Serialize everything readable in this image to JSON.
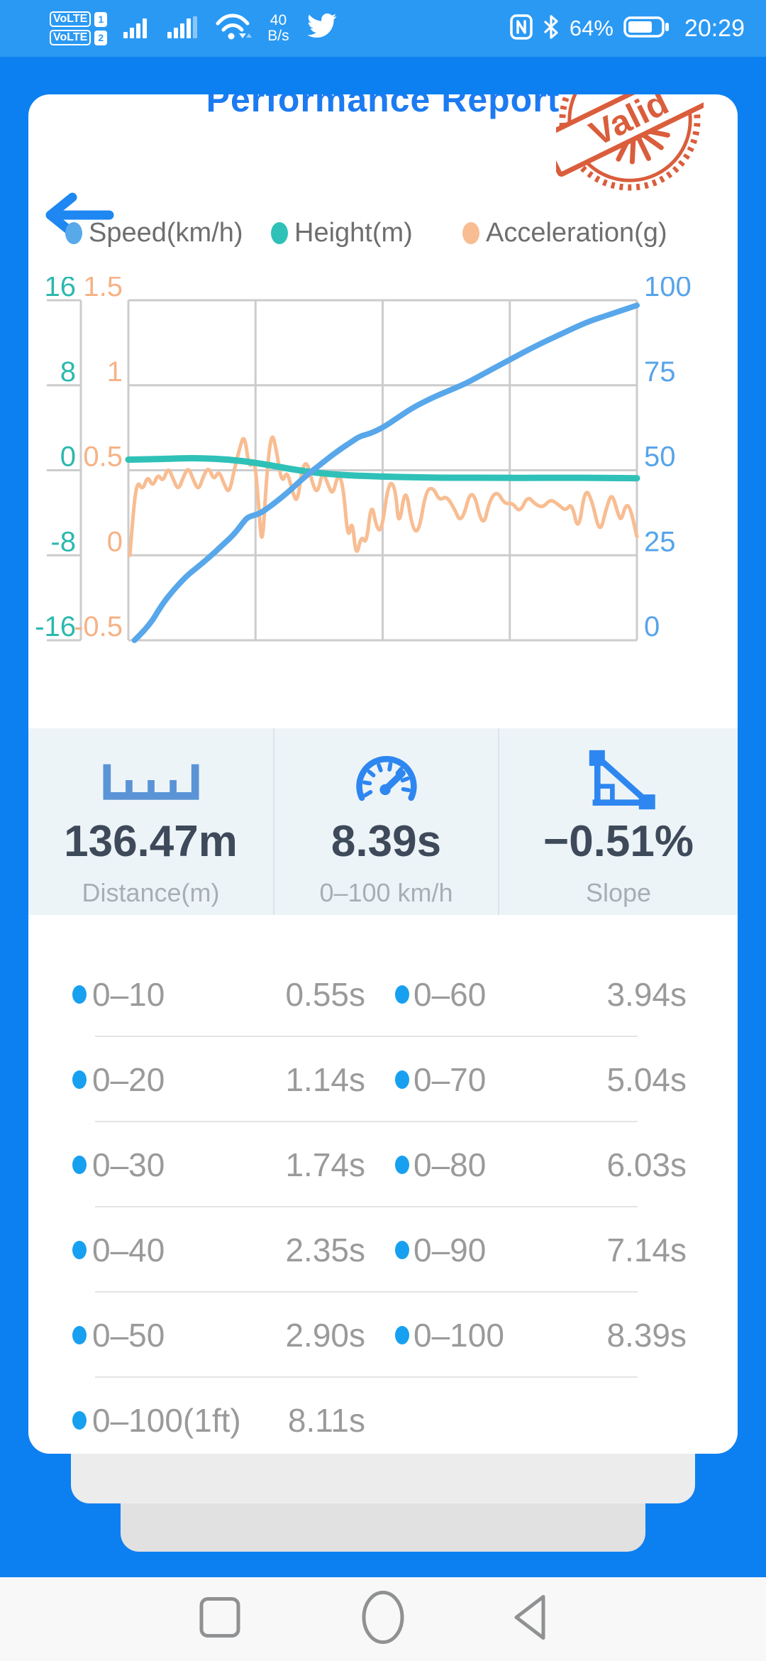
{
  "status_bar": {
    "volte": [
      {
        "label": "VoLTE",
        "sim": "1"
      },
      {
        "label": "VoLTE",
        "sim": "2"
      }
    ],
    "net_speed_value": "40",
    "net_speed_unit": "B/s",
    "battery_percent": "64%",
    "battery_level": 0.64,
    "time": "20:29"
  },
  "report": {
    "title": "Performance Report",
    "stamp": "Valid",
    "legend": [
      {
        "label": "Speed(km/h)",
        "color": "#58a9ea"
      },
      {
        "label": "Height(m)",
        "color": "#2fc1b8"
      },
      {
        "label": "Acceleration(g)",
        "color": "#f8bd92"
      }
    ]
  },
  "chart_data": {
    "type": "line",
    "x_axis": {
      "label": "",
      "range": [
        0,
        1
      ],
      "tick_labels_visible": false
    },
    "grid": {
      "vertical_divisions": 4,
      "horizontal_divisions": 4,
      "color": "#cccccc"
    },
    "axes": [
      {
        "id": "height",
        "side": "left-outer",
        "color": "#2cb8af",
        "labels": [
          "16",
          "8",
          "0",
          "-8",
          "-16"
        ],
        "range": [
          -16,
          16
        ]
      },
      {
        "id": "acceleration",
        "side": "left-inner",
        "color": "#f6b286",
        "labels": [
          "1.5",
          "1",
          "0.5",
          "0",
          "-0.5"
        ],
        "range": [
          -0.5,
          1.5
        ]
      },
      {
        "id": "speed",
        "side": "right",
        "color": "#57a4ea",
        "labels": [
          "100",
          "75",
          "50",
          "25",
          "0"
        ],
        "range": [
          0,
          100
        ]
      }
    ],
    "series": [
      {
        "name": "Acceleration(g)",
        "axis": "acceleration",
        "color": "#f8bd92",
        "width": 5,
        "points": [
          [
            0.003,
            0.0
          ],
          [
            0.01,
            0.28
          ],
          [
            0.018,
            0.44
          ],
          [
            0.028,
            0.38
          ],
          [
            0.038,
            0.47
          ],
          [
            0.048,
            0.4
          ],
          [
            0.058,
            0.48
          ],
          [
            0.068,
            0.43
          ],
          [
            0.078,
            0.52
          ],
          [
            0.088,
            0.45
          ],
          [
            0.098,
            0.38
          ],
          [
            0.108,
            0.46
          ],
          [
            0.118,
            0.52
          ],
          [
            0.128,
            0.44
          ],
          [
            0.138,
            0.38
          ],
          [
            0.148,
            0.47
          ],
          [
            0.158,
            0.52
          ],
          [
            0.168,
            0.44
          ],
          [
            0.178,
            0.5
          ],
          [
            0.188,
            0.42
          ],
          [
            0.198,
            0.36
          ],
          [
            0.208,
            0.5
          ],
          [
            0.218,
            0.62
          ],
          [
            0.228,
            0.72
          ],
          [
            0.238,
            0.5
          ],
          [
            0.248,
            0.58
          ],
          [
            0.256,
            0.3
          ],
          [
            0.263,
            0.02
          ],
          [
            0.272,
            0.48
          ],
          [
            0.282,
            0.74
          ],
          [
            0.292,
            0.6
          ],
          [
            0.302,
            0.42
          ],
          [
            0.312,
            0.5
          ],
          [
            0.322,
            0.38
          ],
          [
            0.332,
            0.3
          ],
          [
            0.342,
            0.52
          ],
          [
            0.352,
            0.55
          ],
          [
            0.362,
            0.42
          ],
          [
            0.372,
            0.36
          ],
          [
            0.382,
            0.5
          ],
          [
            0.392,
            0.42
          ],
          [
            0.402,
            0.35
          ],
          [
            0.412,
            0.48
          ],
          [
            0.422,
            0.42
          ],
          [
            0.432,
            0.08
          ],
          [
            0.44,
            0.22
          ],
          [
            0.448,
            -0.02
          ],
          [
            0.458,
            0.12
          ],
          [
            0.468,
            0.06
          ],
          [
            0.478,
            0.32
          ],
          [
            0.488,
            0.16
          ],
          [
            0.498,
            0.14
          ],
          [
            0.512,
            0.44
          ],
          [
            0.525,
            0.4
          ],
          [
            0.532,
            0.15
          ],
          [
            0.545,
            0.42
          ],
          [
            0.558,
            0.16
          ],
          [
            0.571,
            0.13
          ],
          [
            0.585,
            0.38
          ],
          [
            0.599,
            0.4
          ],
          [
            0.612,
            0.32
          ],
          [
            0.625,
            0.35
          ],
          [
            0.64,
            0.28
          ],
          [
            0.655,
            0.18
          ],
          [
            0.676,
            0.42
          ],
          [
            0.697,
            0.15
          ],
          [
            0.71,
            0.32
          ],
          [
            0.725,
            0.38
          ],
          [
            0.74,
            0.3
          ],
          [
            0.755,
            0.31
          ],
          [
            0.77,
            0.25
          ],
          [
            0.785,
            0.35
          ],
          [
            0.8,
            0.3
          ],
          [
            0.815,
            0.28
          ],
          [
            0.83,
            0.33
          ],
          [
            0.845,
            0.3
          ],
          [
            0.86,
            0.26
          ],
          [
            0.872,
            0.31
          ],
          [
            0.885,
            0.13
          ],
          [
            0.898,
            0.4
          ],
          [
            0.912,
            0.32
          ],
          [
            0.927,
            0.12
          ],
          [
            0.94,
            0.28
          ],
          [
            0.951,
            0.37
          ],
          [
            0.962,
            0.25
          ],
          [
            0.969,
            0.2
          ],
          [
            0.978,
            0.3
          ],
          [
            0.987,
            0.28
          ],
          [
            1.0,
            0.11
          ]
        ]
      },
      {
        "name": "Height(m)",
        "axis": "height",
        "color": "#2fc1b8",
        "width": 9,
        "points": [
          [
            0,
            1.0
          ],
          [
            0.06,
            1.05
          ],
          [
            0.12,
            1.15
          ],
          [
            0.17,
            1.1
          ],
          [
            0.22,
            0.9
          ],
          [
            0.27,
            0.55
          ],
          [
            0.32,
            0.1
          ],
          [
            0.37,
            -0.25
          ],
          [
            0.42,
            -0.45
          ],
          [
            0.47,
            -0.55
          ],
          [
            0.52,
            -0.62
          ],
          [
            0.57,
            -0.66
          ],
          [
            0.62,
            -0.7
          ],
          [
            0.7,
            -0.7
          ],
          [
            0.78,
            -0.72
          ],
          [
            0.86,
            -0.7
          ],
          [
            0.93,
            -0.72
          ],
          [
            1.0,
            -0.75
          ]
        ]
      },
      {
        "name": "Speed(km/h)",
        "axis": "speed",
        "color": "#57a7ea",
        "width": 8,
        "points": [
          [
            0.012,
            0
          ],
          [
            0.04,
            4
          ],
          [
            0.066,
            10.5
          ],
          [
            0.09,
            15
          ],
          [
            0.115,
            19
          ],
          [
            0.136,
            21.5
          ],
          [
            0.16,
            24.5
          ],
          [
            0.185,
            28
          ],
          [
            0.207,
            31
          ],
          [
            0.225,
            34.5
          ],
          [
            0.235,
            36.3
          ],
          [
            0.258,
            37.2
          ],
          [
            0.28,
            39.5
          ],
          [
            0.31,
            43
          ],
          [
            0.346,
            48
          ],
          [
            0.38,
            52
          ],
          [
            0.41,
            55.5
          ],
          [
            0.44,
            58.5
          ],
          [
            0.455,
            60
          ],
          [
            0.475,
            60.8
          ],
          [
            0.5,
            62.5
          ],
          [
            0.53,
            65.5
          ],
          [
            0.56,
            68.5
          ],
          [
            0.6,
            71.5
          ],
          [
            0.632,
            73.5
          ],
          [
            0.663,
            75.5
          ],
          [
            0.7,
            78.5
          ],
          [
            0.75,
            82.5
          ],
          [
            0.8,
            86.5
          ],
          [
            0.85,
            90
          ],
          [
            0.9,
            93.5
          ],
          [
            0.94,
            95.5
          ],
          [
            0.97,
            97
          ],
          [
            1.0,
            98.5
          ]
        ]
      }
    ]
  },
  "stats": [
    {
      "icon": "ruler-icon",
      "value": "136.47m",
      "label": "Distance(m)"
    },
    {
      "icon": "speedometer-icon",
      "value": "8.39s",
      "label": "0–100 km/h"
    },
    {
      "icon": "slope-icon",
      "value": "−0.51%",
      "label": "Slope"
    }
  ],
  "times": {
    "dot_color": "#18a0f0",
    "rows": [
      [
        {
          "label": "0–10",
          "value": "0.55s"
        },
        {
          "label": "0–60",
          "value": "3.94s"
        }
      ],
      [
        {
          "label": "0–20",
          "value": "1.14s"
        },
        {
          "label": "0–70",
          "value": "5.04s"
        }
      ],
      [
        {
          "label": "0–30",
          "value": "1.74s"
        },
        {
          "label": "0–80",
          "value": "6.03s"
        }
      ],
      [
        {
          "label": "0–40",
          "value": "2.35s"
        },
        {
          "label": "0–90",
          "value": "7.14s"
        }
      ],
      [
        {
          "label": "0–50",
          "value": "2.90s"
        },
        {
          "label": "0–100",
          "value": "8.39s"
        }
      ],
      [
        {
          "label": "0–100(1ft)",
          "value": "8.11s"
        }
      ]
    ]
  }
}
